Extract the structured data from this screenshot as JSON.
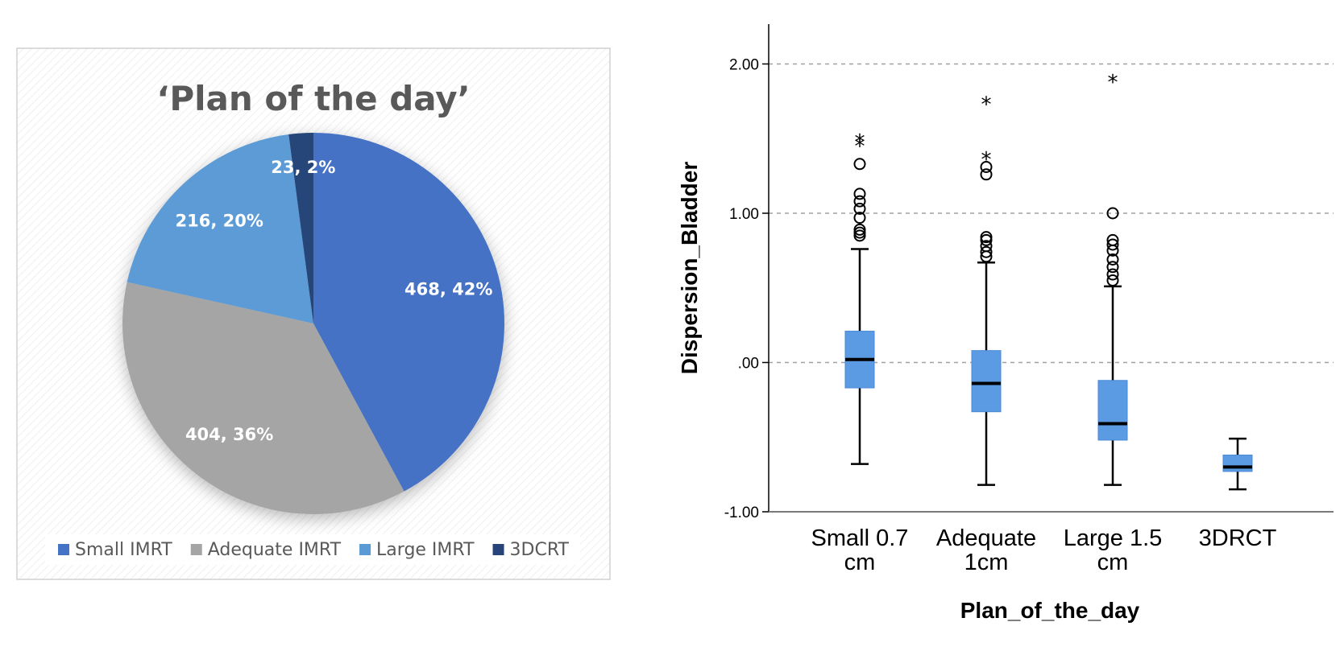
{
  "chart_data": [
    {
      "type": "pie",
      "title": "‘Plan of the day’",
      "slices": [
        {
          "name": "Small IMRT",
          "value": 468,
          "percent": "42%",
          "label": "468, 42%",
          "color": "#4472C4"
        },
        {
          "name": "Adequate IMRT",
          "value": 404,
          "percent": "36%",
          "label": "404, 36%",
          "color": "#A5A5A5"
        },
        {
          "name": "Large IMRT",
          "value": 216,
          "percent": "20%",
          "label": "216, 20%",
          "color": "#5B9BD5"
        },
        {
          "name": "3DCRT",
          "value": 23,
          "percent": "2%",
          "label": "23, 2%",
          "color": "#264478"
        }
      ],
      "legend": {
        "position": "bottom"
      }
    },
    {
      "type": "boxplot",
      "xlabel": "Plan_of_the_day",
      "ylabel": "Dispersion_Bladder",
      "ylim": [
        -1.0,
        2.25
      ],
      "yticks": [
        -1.0,
        0.0,
        1.0,
        2.0
      ],
      "ytick_labels": [
        "-1.00",
        ".00",
        "1.00",
        "2.00"
      ],
      "grid": "horizontal dashed at 0, 1 and 2",
      "box_color": "#5A9BE3",
      "categories": [
        {
          "label_lines": [
            "Small 0.7",
            "cm"
          ],
          "whisker_low": -0.68,
          "q1": -0.17,
          "median": 0.02,
          "q3": 0.21,
          "whisker_high": 0.76,
          "outliers": [
            0.85,
            0.87,
            0.89,
            0.97,
            1.03,
            1.08,
            1.13,
            1.33
          ],
          "extremes": [
            1.45,
            1.48
          ]
        },
        {
          "label_lines": [
            "Adequate",
            "1cm"
          ],
          "whisker_low": -0.82,
          "q1": -0.33,
          "median": -0.14,
          "q3": 0.08,
          "whisker_high": 0.67,
          "outliers": [
            0.71,
            0.74,
            0.78,
            0.82,
            0.84,
            1.26,
            1.31
          ],
          "extremes": [
            1.36,
            1.73
          ]
        },
        {
          "label_lines": [
            "Large 1.5",
            "cm"
          ],
          "whisker_low": -0.82,
          "q1": -0.52,
          "median": -0.41,
          "q3": -0.12,
          "whisker_high": 0.51,
          "outliers": [
            0.55,
            0.59,
            0.64,
            0.69,
            0.75,
            0.79,
            0.82,
            1.0
          ],
          "extremes": [
            1.88
          ]
        },
        {
          "label_lines": [
            "3DRCT"
          ],
          "whisker_low": -0.85,
          "q1": -0.73,
          "median": -0.7,
          "q3": -0.62,
          "whisker_high": -0.51,
          "outliers": [],
          "extremes": []
        }
      ]
    }
  ]
}
